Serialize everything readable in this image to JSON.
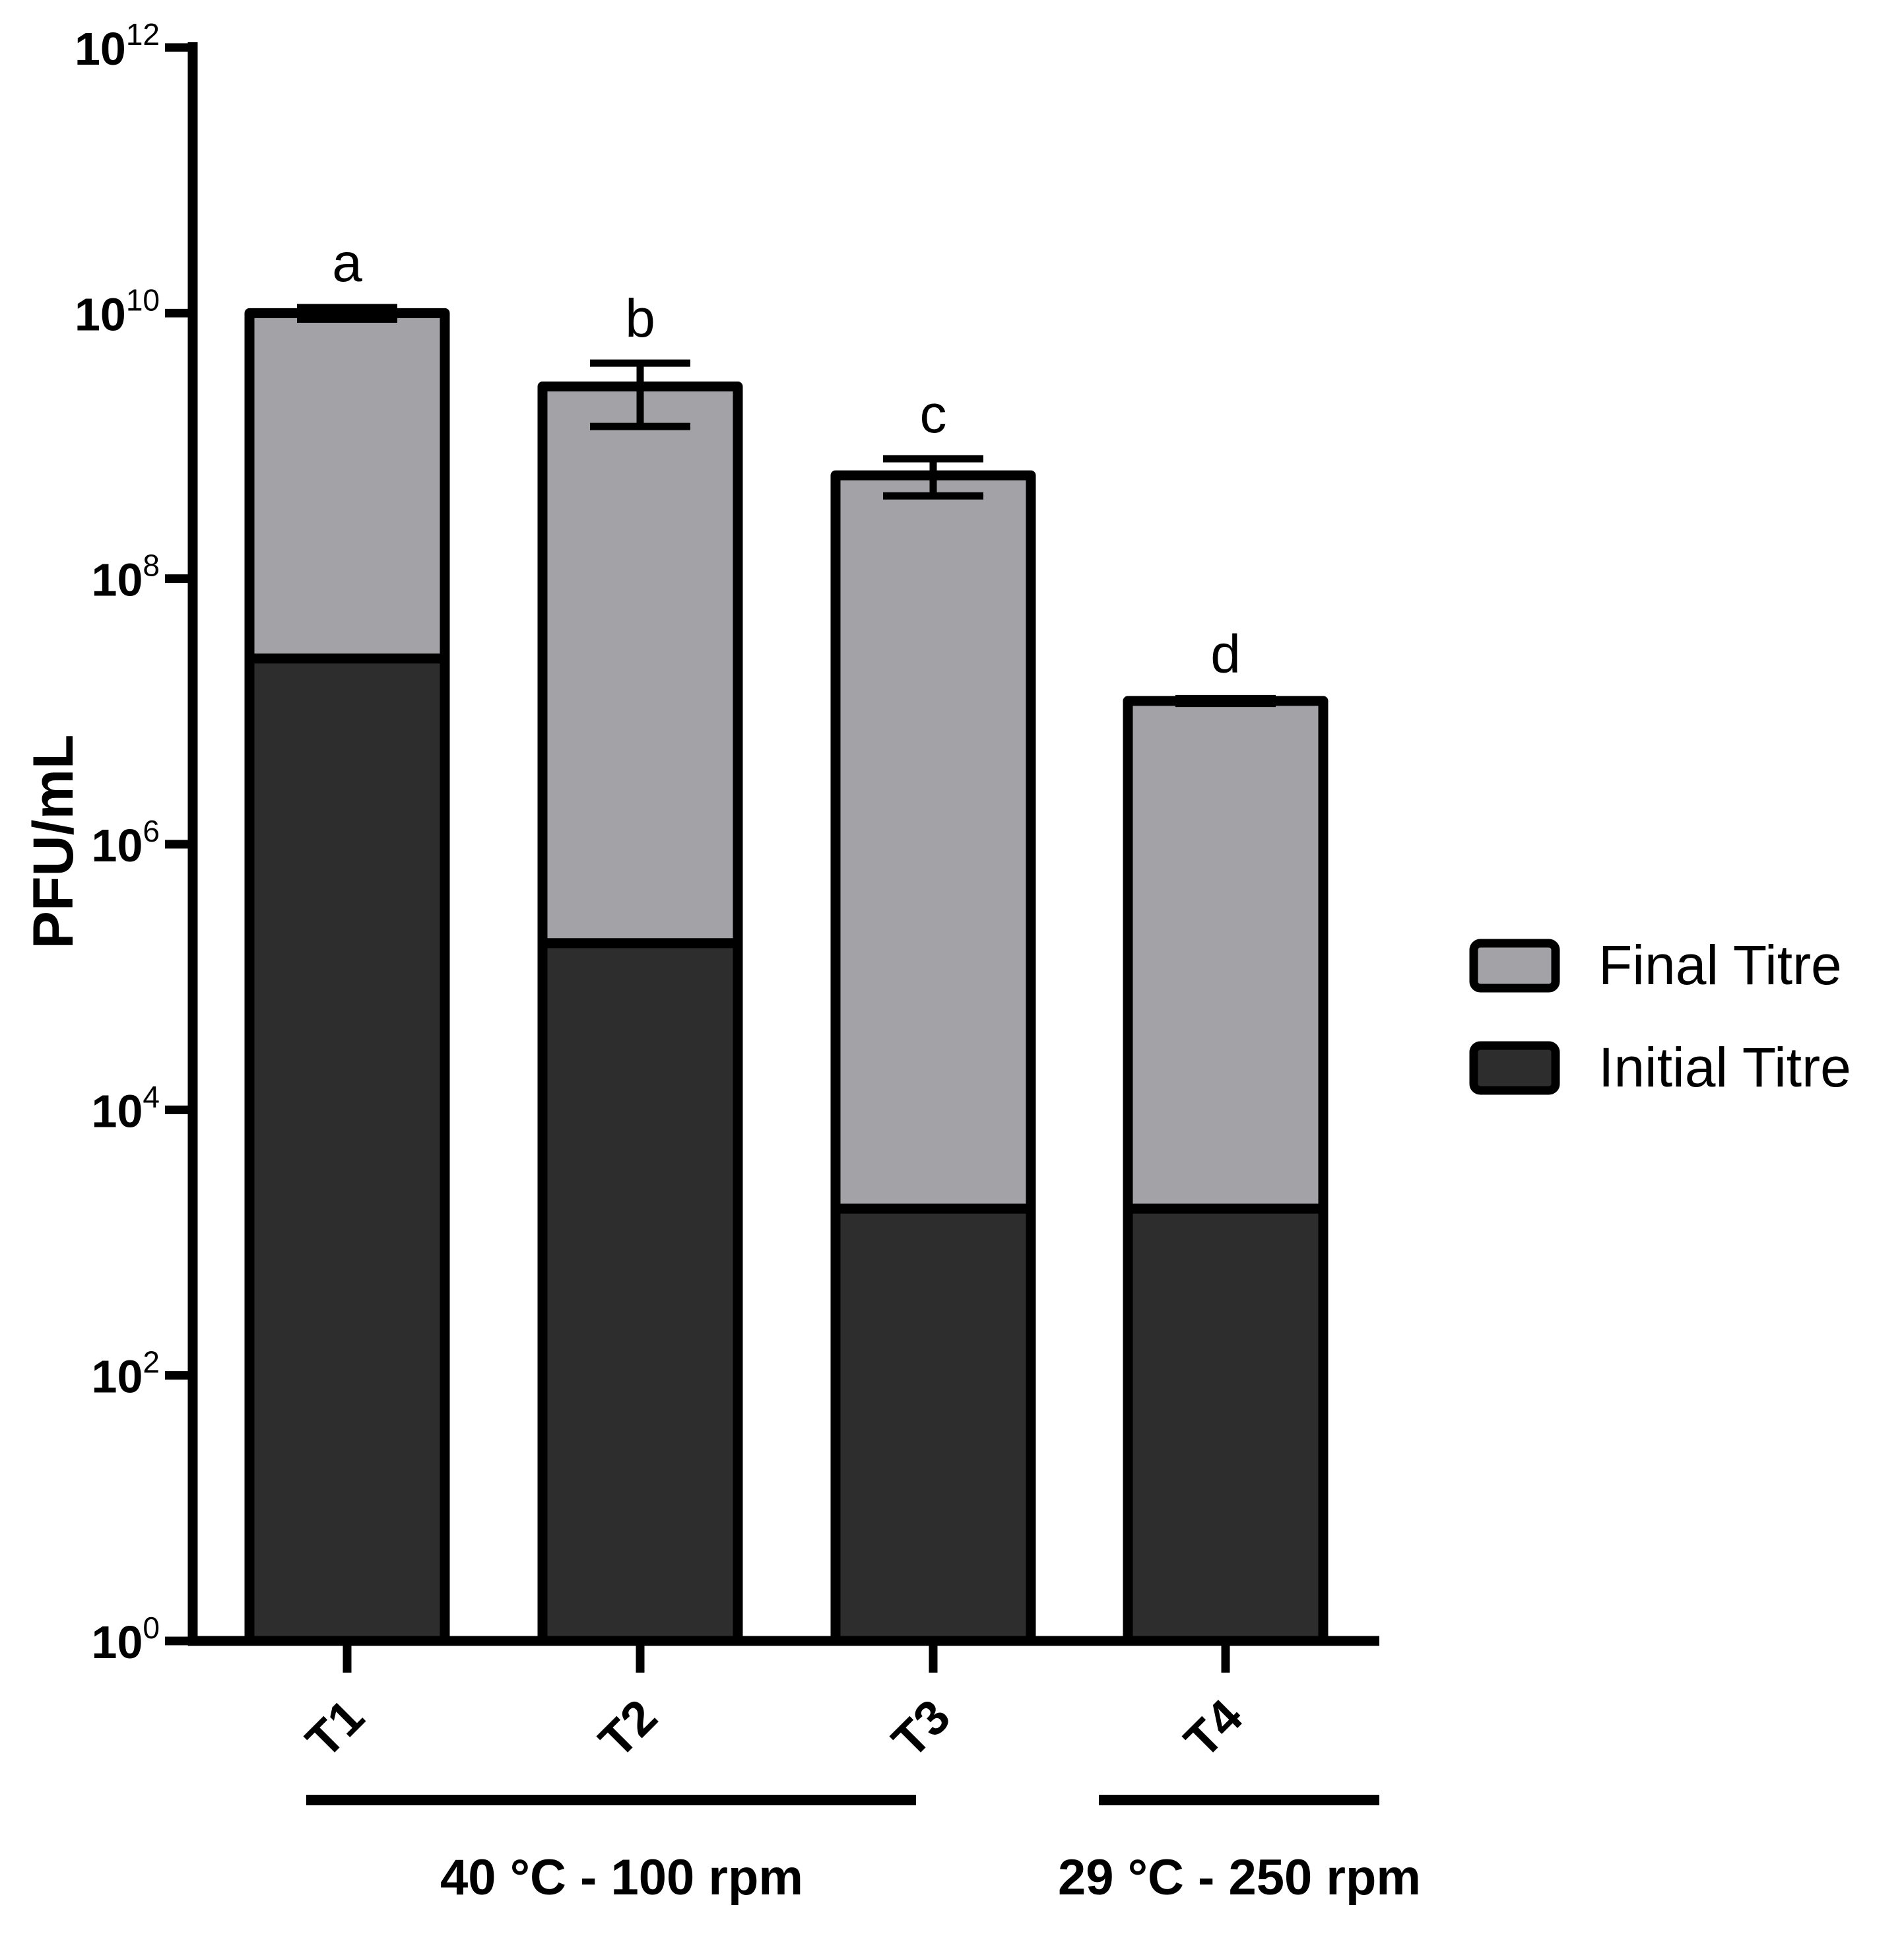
{
  "chart_data": {
    "type": "bar",
    "stacked": true,
    "title": "",
    "xlabel": "",
    "ylabel": "PFU/mL",
    "y_scale": "log10",
    "ylim": [
      1,
      1000000000000
    ],
    "y_ticks": [
      {
        "value": 1,
        "base": "10",
        "exp": "0"
      },
      {
        "value": 100,
        "base": "10",
        "exp": "2"
      },
      {
        "value": 10000,
        "base": "10",
        "exp": "4"
      },
      {
        "value": 1000000,
        "base": "10",
        "exp": "6"
      },
      {
        "value": 100000000,
        "base": "10",
        "exp": "8"
      },
      {
        "value": 10000000000,
        "base": "10",
        "exp": "10"
      },
      {
        "value": 1000000000000,
        "base": "10",
        "exp": "12"
      }
    ],
    "categories": [
      "T1",
      "T2",
      "T3",
      "T4"
    ],
    "series": [
      {
        "name": "Initial Titre",
        "color": "#2d2d2d",
        "values": [
          25000000,
          180000,
          1800,
          1800
        ]
      },
      {
        "name": "Final Titre",
        "color": "#a3a2a7",
        "values": [
          10000000000,
          2800000000,
          600000000,
          12000000
        ],
        "error_low": [
          9000000000,
          1400000000,
          420000000,
          11500000
        ],
        "error_high": [
          11000000000,
          4200000000,
          800000000,
          12500000
        ]
      }
    ],
    "significance_labels": [
      "a",
      "b",
      "c",
      "d"
    ],
    "groups": [
      {
        "label": "40 °C - 100 rpm",
        "categories": [
          "T1",
          "T2",
          "T3"
        ]
      },
      {
        "label": "29 °C - 250 rpm",
        "categories": [
          "T4"
        ]
      }
    ],
    "legend": {
      "position": "right",
      "entries": [
        {
          "label": "Final Titre",
          "color": "#a3a2a7"
        },
        {
          "label": "Initial Titre",
          "color": "#2d2d2d"
        }
      ]
    },
    "grid": false
  }
}
